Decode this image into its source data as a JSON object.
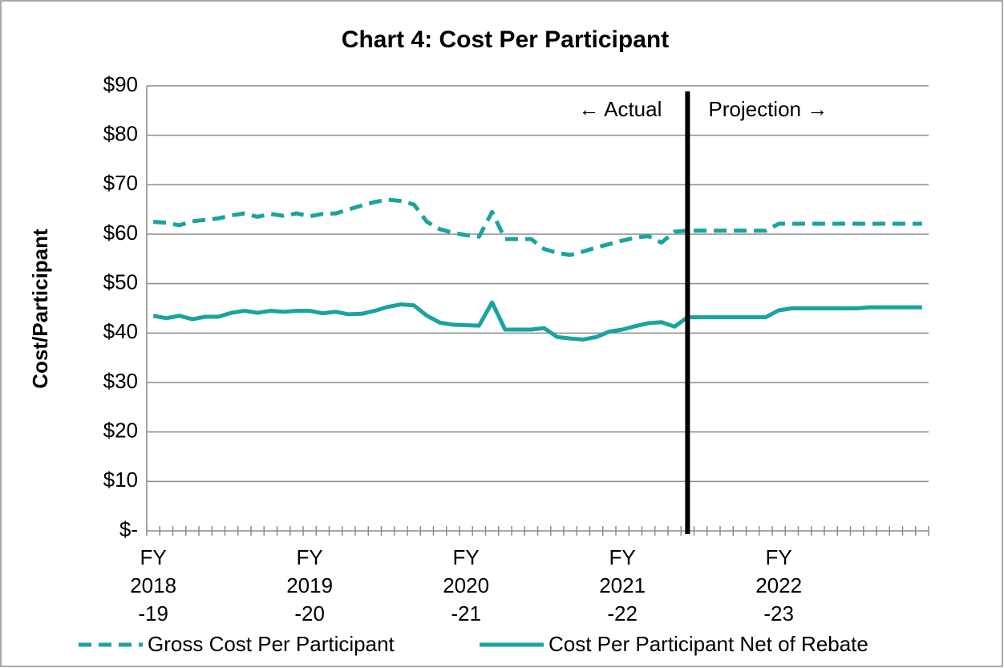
{
  "chart_data": {
    "type": "line",
    "title": "Chart 4: Cost Per Participant",
    "y_label": "Cost/Participant",
    "categories": [
      "FY 2018 -19",
      null,
      null,
      null,
      null,
      null,
      null,
      null,
      null,
      null,
      null,
      null,
      "FY 2019 -20",
      null,
      null,
      null,
      null,
      null,
      null,
      null,
      null,
      null,
      null,
      null,
      "FY 2020 -21",
      null,
      null,
      null,
      null,
      null,
      null,
      null,
      null,
      null,
      null,
      null,
      "FY 2021 -22",
      null,
      null,
      null,
      null,
      null,
      null,
      null,
      null,
      null,
      null,
      null,
      "FY 2022 -23",
      null,
      null,
      null,
      null,
      null,
      null,
      null,
      null,
      null,
      null,
      null
    ],
    "series": [
      {
        "name": "Gross Cost Per Participant",
        "color": "#1aa39f",
        "dashed": true,
        "values": [
          62.5,
          62.3,
          61.8,
          62.6,
          62.9,
          63.2,
          63.8,
          64.2,
          63.5,
          64.1,
          63.7,
          64.2,
          63.6,
          64.1,
          64.2,
          65,
          65.8,
          66.5,
          67,
          66.7,
          66,
          62.5,
          61,
          60.3,
          59.8,
          59.5,
          64.5,
          59,
          59,
          59,
          57,
          56.2,
          55.8,
          56.5,
          57.3,
          58,
          58.7,
          59.3,
          59.6,
          58.3,
          60.5,
          60.7,
          60.7,
          60.7,
          60.7,
          60.7,
          60.7,
          60.7,
          62.1,
          62.1,
          62.1,
          62.1,
          62.1,
          62.1,
          62.1,
          62.1,
          62.1,
          62.1,
          62.1,
          62.1
        ]
      },
      {
        "name": "Cost Per Participant Net of Rebate",
        "color": "#1aa39f",
        "dashed": false,
        "values": [
          43.5,
          43,
          43.5,
          42.8,
          43.3,
          43.3,
          44.1,
          44.5,
          44.1,
          44.5,
          44.3,
          44.5,
          44.5,
          44,
          44.3,
          43.8,
          43.9,
          44.5,
          45.3,
          45.8,
          45.6,
          43.5,
          42.1,
          41.7,
          41.6,
          41.5,
          46.2,
          40.7,
          40.7,
          40.7,
          41,
          39.2,
          38.9,
          38.7,
          39.2,
          40.3,
          40.7,
          41.4,
          42,
          42.2,
          41.3,
          43.2,
          43.2,
          43.2,
          43.2,
          43.2,
          43.2,
          43.2,
          44.6,
          45,
          45,
          45,
          45,
          45,
          45,
          45.2,
          45.2,
          45.2,
          45.2,
          45.2
        ]
      }
    ],
    "ylim": [
      0,
      90
    ],
    "yticks": [
      {
        "value": 0,
        "label": "$-"
      },
      {
        "value": 10,
        "label": "$10"
      },
      {
        "value": 20,
        "label": "$20"
      },
      {
        "value": 30,
        "label": "$30"
      },
      {
        "value": 40,
        "label": "$40"
      },
      {
        "value": 50,
        "label": "$50"
      },
      {
        "value": 60,
        "label": "$60"
      },
      {
        "value": 70,
        "label": "$70"
      },
      {
        "value": 80,
        "label": "$80"
      },
      {
        "value": 90,
        "label": "$90"
      }
    ],
    "grid": true,
    "divider_index": 41,
    "annotations": [
      "← Actual",
      "Projection →"
    ],
    "legend": "bottom"
  }
}
